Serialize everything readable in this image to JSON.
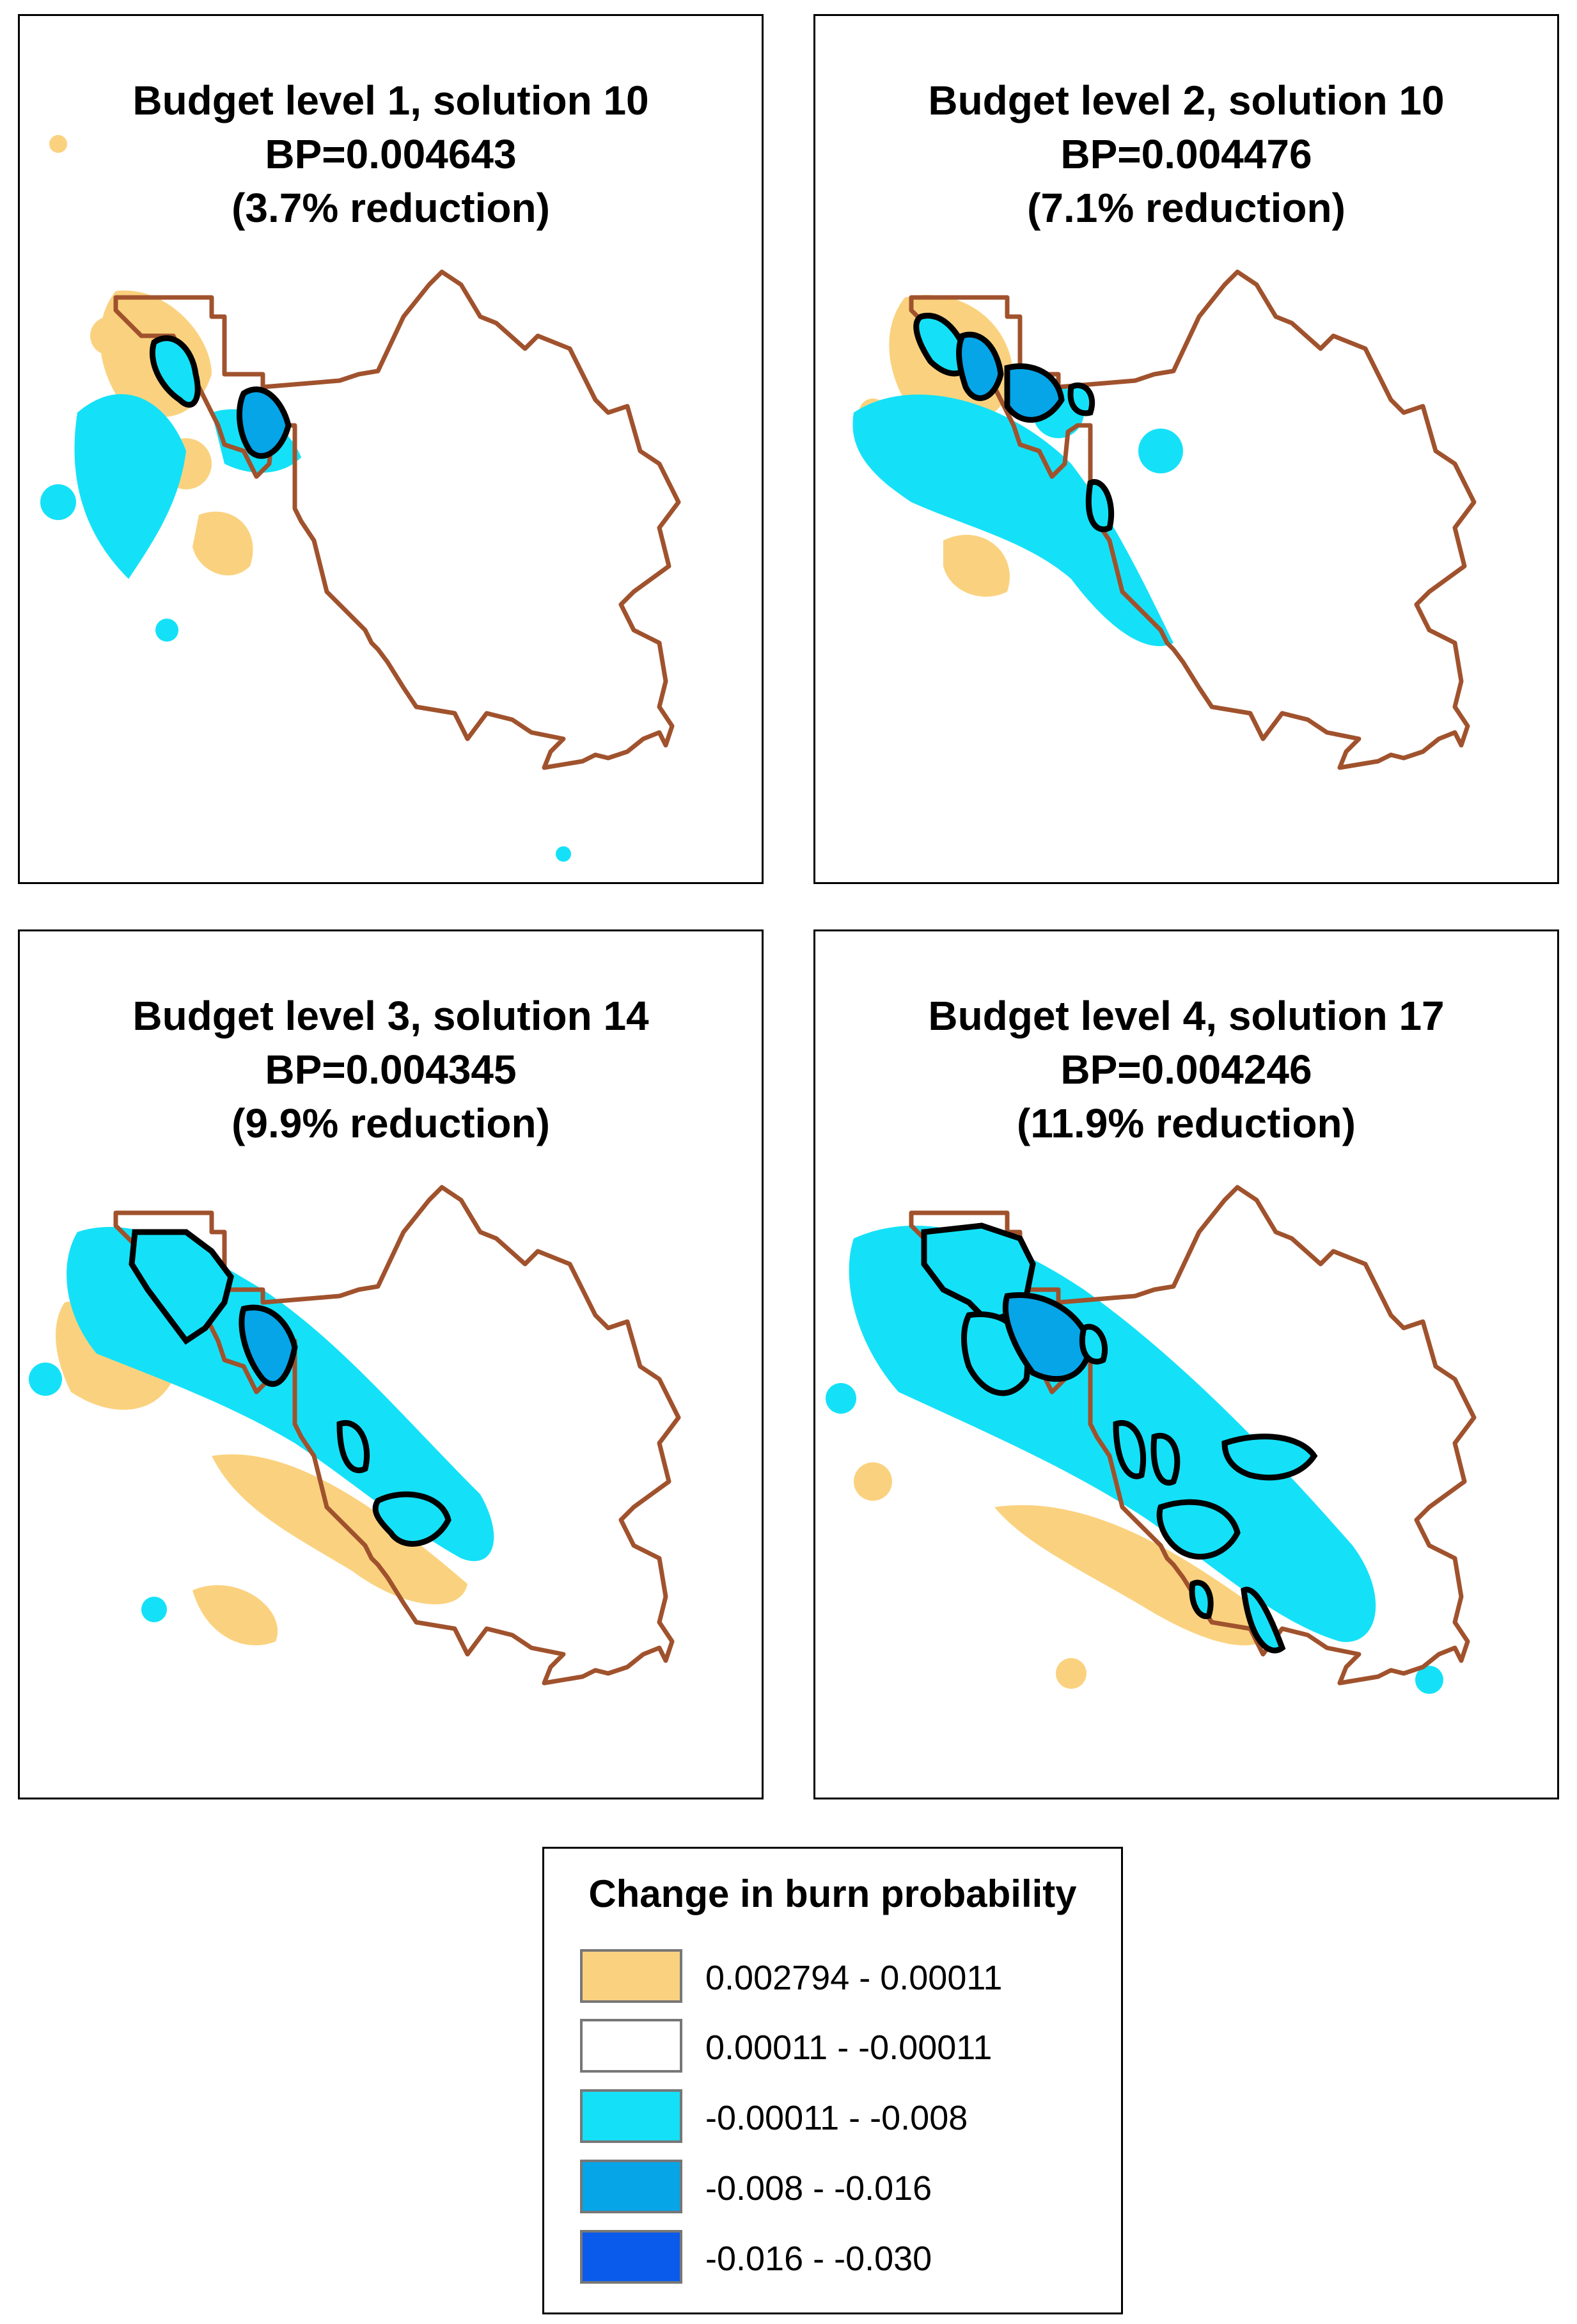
{
  "panels": [
    {
      "title": "Budget level 1, solution 10",
      "bp": "BP=0.004643",
      "reduction": "(3.7% reduction)"
    },
    {
      "title": "Budget level 2, solution 10",
      "bp": "BP=0.004476",
      "reduction": "(7.1% reduction)"
    },
    {
      "title": "Budget level 3, solution 14",
      "bp": "BP=0.004345",
      "reduction": "(9.9% reduction)"
    },
    {
      "title": "Budget level 4, solution 17",
      "bp": "BP=0.004246",
      "reduction": "(11.9% reduction)"
    }
  ],
  "legend": {
    "title": "Change in burn probability",
    "items": [
      {
        "label": "0.002794 - 0.00011",
        "color": "#FAD27F"
      },
      {
        "label": "0.00011 - -0.00011",
        "color": "#FFFFFF"
      },
      {
        "label": "-0.00011 - -0.008",
        "color": "#14E1F8"
      },
      {
        "label": "-0.008 - -0.016",
        "color": "#05A5E8"
      },
      {
        "label": "-0.016 - -0.030",
        "color": "#0A5BEB"
      }
    ]
  },
  "colors": {
    "boundary": "#A0522D",
    "treatment_outline": "#000000"
  }
}
